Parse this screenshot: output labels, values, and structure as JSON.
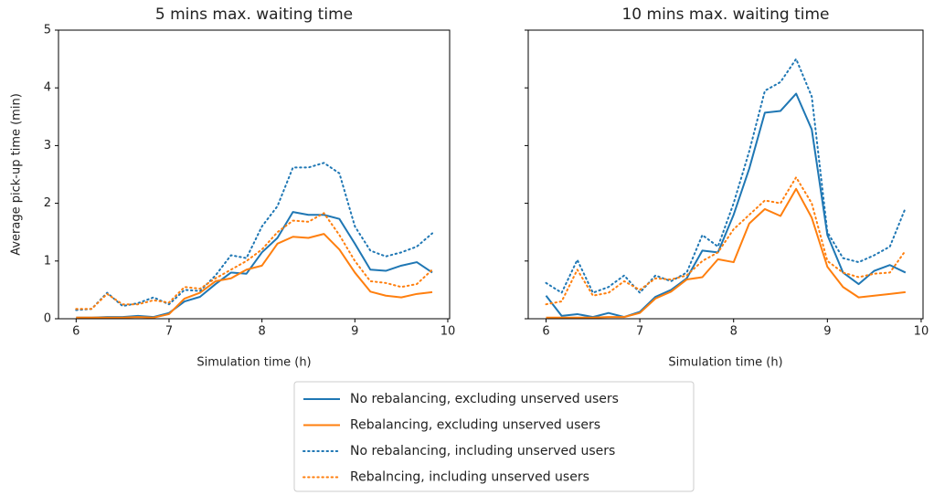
{
  "chart_data": [
    {
      "type": "line",
      "title": "5 mins max. waiting time",
      "xlabel": "Simulation time (h)",
      "ylabel": "Average pick-up time (min)",
      "x": [
        6,
        6.1667,
        6.3333,
        6.5,
        6.6667,
        6.8333,
        7,
        7.1667,
        7.3333,
        7.5,
        7.6667,
        7.8333,
        8,
        8.1667,
        8.3333,
        8.5,
        8.6667,
        8.8333,
        9,
        9.1667,
        9.3333,
        9.5,
        9.6667,
        9.8333
      ],
      "xlim": [
        5.81,
        10.02
      ],
      "xticks": [
        6,
        7,
        8,
        9,
        10
      ],
      "ylim": [
        0,
        5
      ],
      "yticks": [
        0,
        1,
        2,
        3,
        4,
        5
      ],
      "series": [
        {
          "name": "No rebalancing, excluding unserved users",
          "color": "#1f77b4",
          "dash": "solid",
          "values": [
            0.02,
            0.02,
            0.03,
            0.03,
            0.05,
            0.03,
            0.1,
            0.3,
            0.38,
            0.6,
            0.8,
            0.78,
            1.15,
            1.4,
            1.85,
            1.8,
            1.8,
            1.73,
            1.3,
            0.85,
            0.83,
            0.92,
            0.98,
            0.8
          ]
        },
        {
          "name": "Rebalancing, excluding unserved users",
          "color": "#ff7f0e",
          "dash": "solid",
          "values": [
            0.02,
            0.02,
            0.02,
            0.02,
            0.03,
            0.02,
            0.08,
            0.35,
            0.45,
            0.65,
            0.7,
            0.85,
            0.92,
            1.3,
            1.42,
            1.4,
            1.47,
            1.2,
            0.8,
            0.47,
            0.4,
            0.37,
            0.43,
            0.46
          ]
        },
        {
          "name": "No rebalancing, including unserved users",
          "color": "#1f77b4",
          "dash": "dotted",
          "values": [
            0.15,
            0.17,
            0.45,
            0.22,
            0.27,
            0.37,
            0.25,
            0.5,
            0.48,
            0.75,
            1.1,
            1.05,
            1.6,
            1.95,
            2.62,
            2.62,
            2.7,
            2.52,
            1.6,
            1.18,
            1.08,
            1.15,
            1.25,
            1.48
          ]
        },
        {
          "name": "Rebalncing, including unserved users",
          "color": "#ff7f0e",
          "dash": "dotted",
          "values": [
            0.17,
            0.17,
            0.43,
            0.25,
            0.25,
            0.32,
            0.28,
            0.55,
            0.52,
            0.7,
            0.85,
            1.0,
            1.2,
            1.5,
            1.7,
            1.68,
            1.83,
            1.45,
            1.0,
            0.65,
            0.62,
            0.55,
            0.6,
            0.85
          ]
        }
      ]
    },
    {
      "type": "line",
      "title": "10 mins max. waiting time",
      "xlabel": "Simulation time (h)",
      "x": [
        6,
        6.1667,
        6.3333,
        6.5,
        6.6667,
        6.8333,
        7,
        7.1667,
        7.3333,
        7.5,
        7.6667,
        7.8333,
        8,
        8.1667,
        8.3333,
        8.5,
        8.6667,
        8.8333,
        9,
        9.1667,
        9.3333,
        9.5,
        9.6667,
        9.8333
      ],
      "xlim": [
        5.81,
        10.02
      ],
      "xticks": [
        6,
        7,
        8,
        9,
        10
      ],
      "series": [
        {
          "color": "#1f77b4",
          "dash": "solid",
          "values": [
            0.4,
            0.05,
            0.08,
            0.03,
            0.1,
            0.03,
            0.12,
            0.38,
            0.5,
            0.7,
            1.18,
            1.15,
            1.8,
            2.6,
            3.57,
            3.6,
            3.9,
            3.28,
            1.45,
            0.8,
            0.6,
            0.83,
            0.93,
            0.8
          ]
        },
        {
          "color": "#ff7f0e",
          "dash": "solid",
          "values": [
            0.02,
            0.02,
            0.02,
            0.02,
            0.03,
            0.03,
            0.1,
            0.35,
            0.47,
            0.68,
            0.72,
            1.03,
            0.98,
            1.65,
            1.9,
            1.78,
            2.25,
            1.75,
            0.9,
            0.55,
            0.37,
            0.4,
            0.43,
            0.46
          ]
        },
        {
          "color": "#1f77b4",
          "dash": "dotted",
          "values": [
            0.62,
            0.45,
            1.02,
            0.45,
            0.55,
            0.75,
            0.45,
            0.75,
            0.65,
            0.8,
            1.45,
            1.25,
            2.0,
            2.9,
            3.95,
            4.1,
            4.5,
            3.85,
            1.5,
            1.05,
            0.98,
            1.1,
            1.25,
            1.92
          ]
        },
        {
          "color": "#ff7f0e",
          "dash": "dotted",
          "values": [
            0.25,
            0.3,
            0.85,
            0.4,
            0.45,
            0.65,
            0.5,
            0.7,
            0.68,
            0.75,
            1.0,
            1.15,
            1.55,
            1.8,
            2.05,
            2.0,
            2.45,
            2.0,
            1.0,
            0.8,
            0.72,
            0.78,
            0.8,
            1.18
          ]
        }
      ]
    }
  ]
}
